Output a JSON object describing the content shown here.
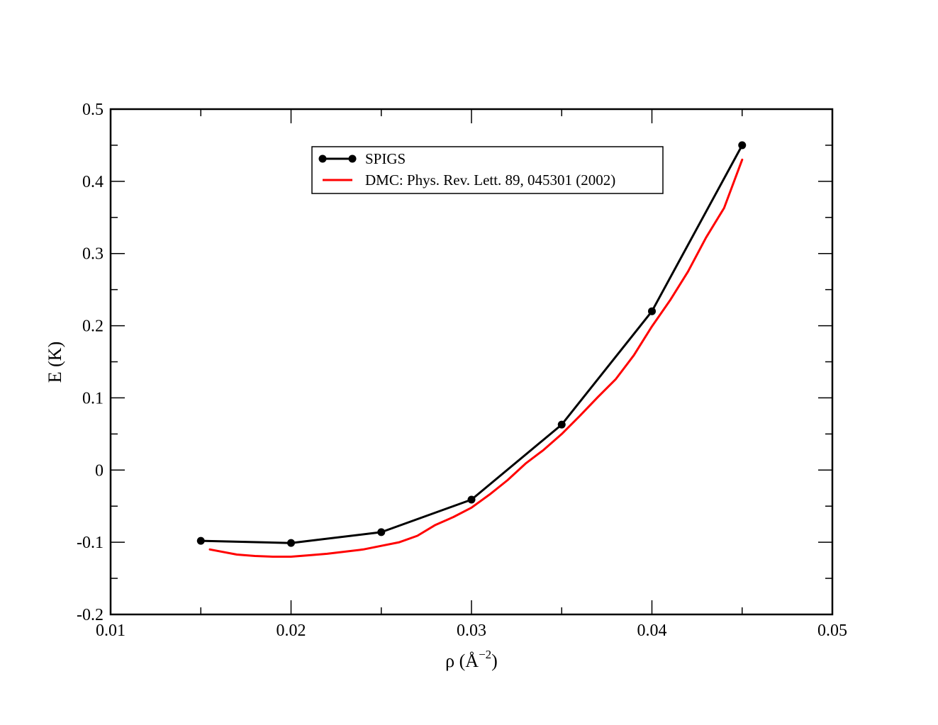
{
  "chart_data": {
    "type": "line",
    "xlabel": "ρ  (Å",
    "xlabel_exponent": "−2",
    "xlabel_close": ")",
    "ylabel": "E  (K)",
    "xlim": [
      0.01,
      0.05
    ],
    "ylim": [
      -0.2,
      0.5
    ],
    "x_ticks": [
      0.01,
      0.02,
      0.03,
      0.04,
      0.05
    ],
    "x_tick_labels": [
      "0.01",
      "0.02",
      "0.03",
      "0.04",
      "0.05"
    ],
    "y_ticks": [
      -0.2,
      -0.1,
      0,
      0.1,
      0.2,
      0.3,
      0.4,
      0.5
    ],
    "y_tick_labels": [
      "-0.2",
      "-0.1",
      "0",
      "0.1",
      "0.2",
      "0.3",
      "0.4",
      "0.5"
    ],
    "grid": false,
    "legend_position": "top-center",
    "series": [
      {
        "name": "SPIGS",
        "color": "#000000",
        "markers": true,
        "x": [
          0.015,
          0.02,
          0.025,
          0.03,
          0.035,
          0.04,
          0.045
        ],
        "y": [
          -0.098,
          -0.101,
          -0.086,
          -0.041,
          0.063,
          0.22,
          0.45
        ]
      },
      {
        "name": "DMC: Phys. Rev. Lett. 89, 045301 (2002)",
        "color": "#ff0000",
        "markers": false,
        "x": [
          0.0155,
          0.017,
          0.018,
          0.019,
          0.02,
          0.021,
          0.022,
          0.023,
          0.024,
          0.025,
          0.026,
          0.027,
          0.028,
          0.029,
          0.03,
          0.031,
          0.032,
          0.033,
          0.034,
          0.035,
          0.036,
          0.037,
          0.038,
          0.039,
          0.04,
          0.041,
          0.042,
          0.043,
          0.044,
          0.045
        ],
        "y": [
          -0.11,
          -0.117,
          -0.119,
          -0.12,
          -0.12,
          -0.118,
          -0.116,
          -0.113,
          -0.11,
          -0.105,
          -0.1,
          -0.091,
          -0.076,
          -0.065,
          -0.052,
          -0.034,
          -0.014,
          0.009,
          0.028,
          0.05,
          0.075,
          0.101,
          0.126,
          0.159,
          0.199,
          0.235,
          0.275,
          0.322,
          0.363,
          0.43
        ]
      }
    ]
  }
}
